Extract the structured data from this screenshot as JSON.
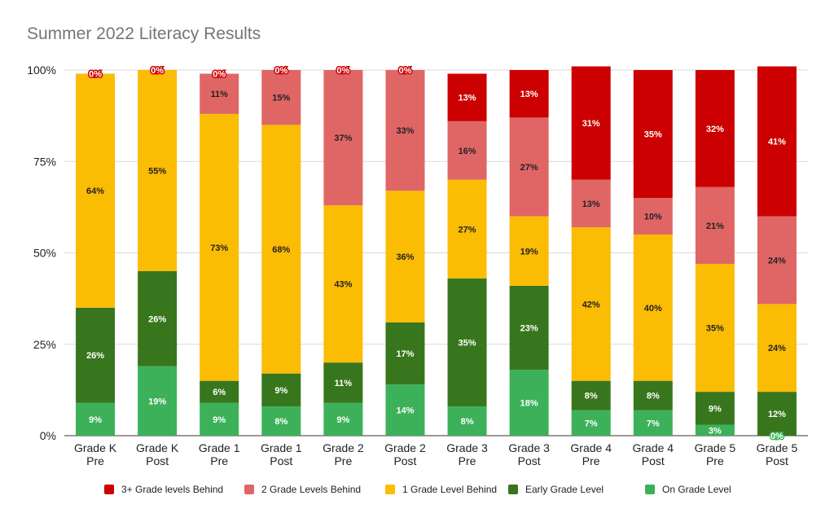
{
  "chart_data": {
    "type": "bar",
    "stacked": true,
    "title": "Summer 2022 Literacy Results",
    "xlabel": "",
    "ylabel": "",
    "ylim": [
      0,
      100
    ],
    "y_ticks": [
      "0%",
      "25%",
      "50%",
      "75%",
      "100%"
    ],
    "grid": true,
    "legend_position": "bottom",
    "categories": [
      [
        "Grade K",
        "Pre"
      ],
      [
        "Grade K",
        "Post"
      ],
      [
        "Grade 1",
        "Pre"
      ],
      [
        "Grade 1",
        "Post"
      ],
      [
        "Grade 2",
        "Pre"
      ],
      [
        "Grade 2",
        "Post"
      ],
      [
        "Grade 3",
        "Pre"
      ],
      [
        "Grade 3",
        "Post"
      ],
      [
        "Grade 4",
        "Pre"
      ],
      [
        "Grade 4",
        "Post"
      ],
      [
        "Grade 5",
        "Pre"
      ],
      [
        "Grade 5",
        "Post"
      ]
    ],
    "series": [
      {
        "name": "On Grade Level",
        "color": "#3cb15a",
        "label_color": "#ffffff",
        "values": [
          9,
          19,
          9,
          8,
          9,
          14,
          8,
          18,
          7,
          7,
          3,
          0
        ]
      },
      {
        "name": "Early Grade Level",
        "color": "#38761d",
        "label_color": "#ffffff",
        "values": [
          26,
          26,
          6,
          9,
          11,
          17,
          35,
          23,
          8,
          8,
          9,
          12
        ]
      },
      {
        "name": "1 Grade Level Behind",
        "color": "#fbbc04",
        "label_color": "#222222",
        "values": [
          64,
          55,
          73,
          68,
          43,
          36,
          27,
          19,
          42,
          40,
          35,
          24
        ]
      },
      {
        "name": "2 Grade Levels Behind",
        "color": "#e06666",
        "label_color": "#222222",
        "values": [
          0,
          0,
          11,
          15,
          37,
          33,
          16,
          27,
          13,
          10,
          21,
          24
        ]
      },
      {
        "name": "3+ Grade levels Behind",
        "color": "#cc0000",
        "label_color": "#ffffff",
        "values": [
          0,
          0,
          0,
          0,
          0,
          0,
          13,
          13,
          31,
          35,
          32,
          41
        ]
      }
    ],
    "legend_order": [
      4,
      3,
      2,
      1,
      0
    ]
  }
}
